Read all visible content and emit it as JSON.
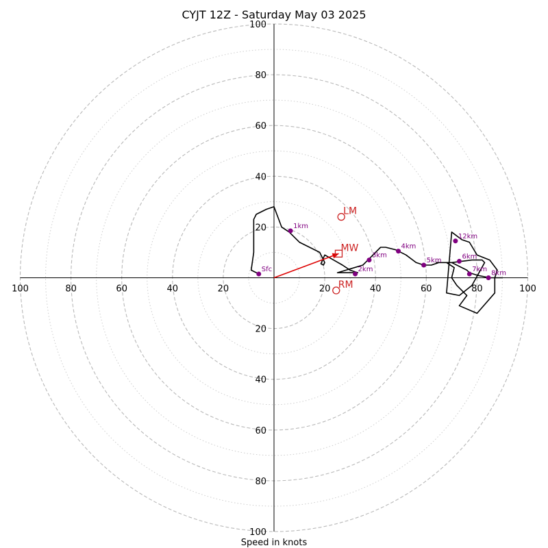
{
  "chart_data": {
    "type": "hodograph",
    "title": "CYJT 12Z - Saturday May 03 2025",
    "xlabel": "Speed in knots",
    "ylabel": "",
    "xlim": [
      -100,
      100
    ],
    "ylim": [
      -100,
      100
    ],
    "grid": true,
    "rings": {
      "major": [
        20,
        40,
        60,
        80,
        100
      ],
      "minor": [
        10,
        30,
        50,
        70,
        90
      ]
    },
    "ticks": {
      "x": [
        {
          "value": -100,
          "label": "100"
        },
        {
          "value": -80,
          "label": "80"
        },
        {
          "value": -60,
          "label": "60"
        },
        {
          "value": -40,
          "label": "40"
        },
        {
          "value": -20,
          "label": "20"
        },
        {
          "value": 20,
          "label": "20"
        },
        {
          "value": 40,
          "label": "40"
        },
        {
          "value": 60,
          "label": "60"
        },
        {
          "value": 80,
          "label": "80"
        },
        {
          "value": 100,
          "label": "100"
        }
      ],
      "y": [
        {
          "value": 100,
          "label": "100"
        },
        {
          "value": 80,
          "label": "80"
        },
        {
          "value": 60,
          "label": "60"
        },
        {
          "value": 40,
          "label": "40"
        },
        {
          "value": 20,
          "label": "20"
        },
        {
          "value": -20,
          "label": "20"
        },
        {
          "value": -40,
          "label": "40"
        },
        {
          "value": -60,
          "label": "60"
        },
        {
          "value": -80,
          "label": "80"
        },
        {
          "value": -100,
          "label": "100"
        }
      ]
    },
    "trace": {
      "color": "#000000",
      "u": [
        -6,
        -9,
        -8,
        -8,
        -7,
        -3,
        0,
        3,
        6,
        10,
        18,
        20,
        19.5,
        18.5,
        20,
        27,
        30,
        33,
        25,
        35,
        38,
        42,
        44,
        48,
        52,
        56,
        59,
        62,
        65,
        70,
        78,
        82,
        83,
        78,
        73,
        68,
        70,
        74,
        77,
        80,
        85,
        88,
        87,
        87,
        80,
        73,
        76,
        72,
        70,
        71,
        68,
        64,
        70,
        76,
        77,
        80,
        85,
        90
      ],
      "v": [
        1.5,
        3,
        10,
        23,
        25,
        27,
        28,
        20,
        18,
        14,
        10,
        6,
        5,
        5.5,
        9,
        5,
        3,
        2,
        2,
        5,
        8,
        12,
        12,
        11,
        9,
        6,
        5,
        5,
        6,
        6,
        7,
        7,
        6,
        -3,
        -7,
        -6,
        18,
        15,
        14,
        9,
        7,
        3,
        0,
        -6,
        -14,
        -11,
        -7,
        -3,
        0,
        4,
        6,
        6,
        6,
        3,
        2,
        1,
        0,
        0
      ]
    },
    "height_markers": {
      "color": "#800080",
      "points": [
        {
          "label": "Sfc",
          "u": -6,
          "v": 1.5
        },
        {
          "label": "1km",
          "u": 6.5,
          "v": 18.5
        },
        {
          "label": "2km",
          "u": 32,
          "v": 1.5
        },
        {
          "label": "3km",
          "u": 37.5,
          "v": 7
        },
        {
          "label": "4km",
          "u": 49,
          "v": 10.5
        },
        {
          "label": "5km",
          "u": 59,
          "v": 5
        },
        {
          "label": "6km",
          "u": 73,
          "v": 6.5
        },
        {
          "label": "7km",
          "u": 77,
          "v": 1.5
        },
        {
          "label": "8km",
          "u": 84.5,
          "v": 0
        },
        {
          "label": "12km",
          "u": 71.5,
          "v": 14.5
        }
      ]
    },
    "motion_markers": {
      "color": "#cc2222",
      "points": [
        {
          "label": "LM",
          "u": 26.5,
          "v": 24,
          "shape": "circle"
        },
        {
          "label": "MW",
          "u": 25.5,
          "v": 9.5,
          "shape": "square"
        },
        {
          "label": "RM",
          "u": 24.5,
          "v": -5,
          "shape": "circle"
        }
      ]
    },
    "mean_wind_vector": {
      "u": 25.5,
      "v": 9.5,
      "color": "#dd0000"
    }
  }
}
